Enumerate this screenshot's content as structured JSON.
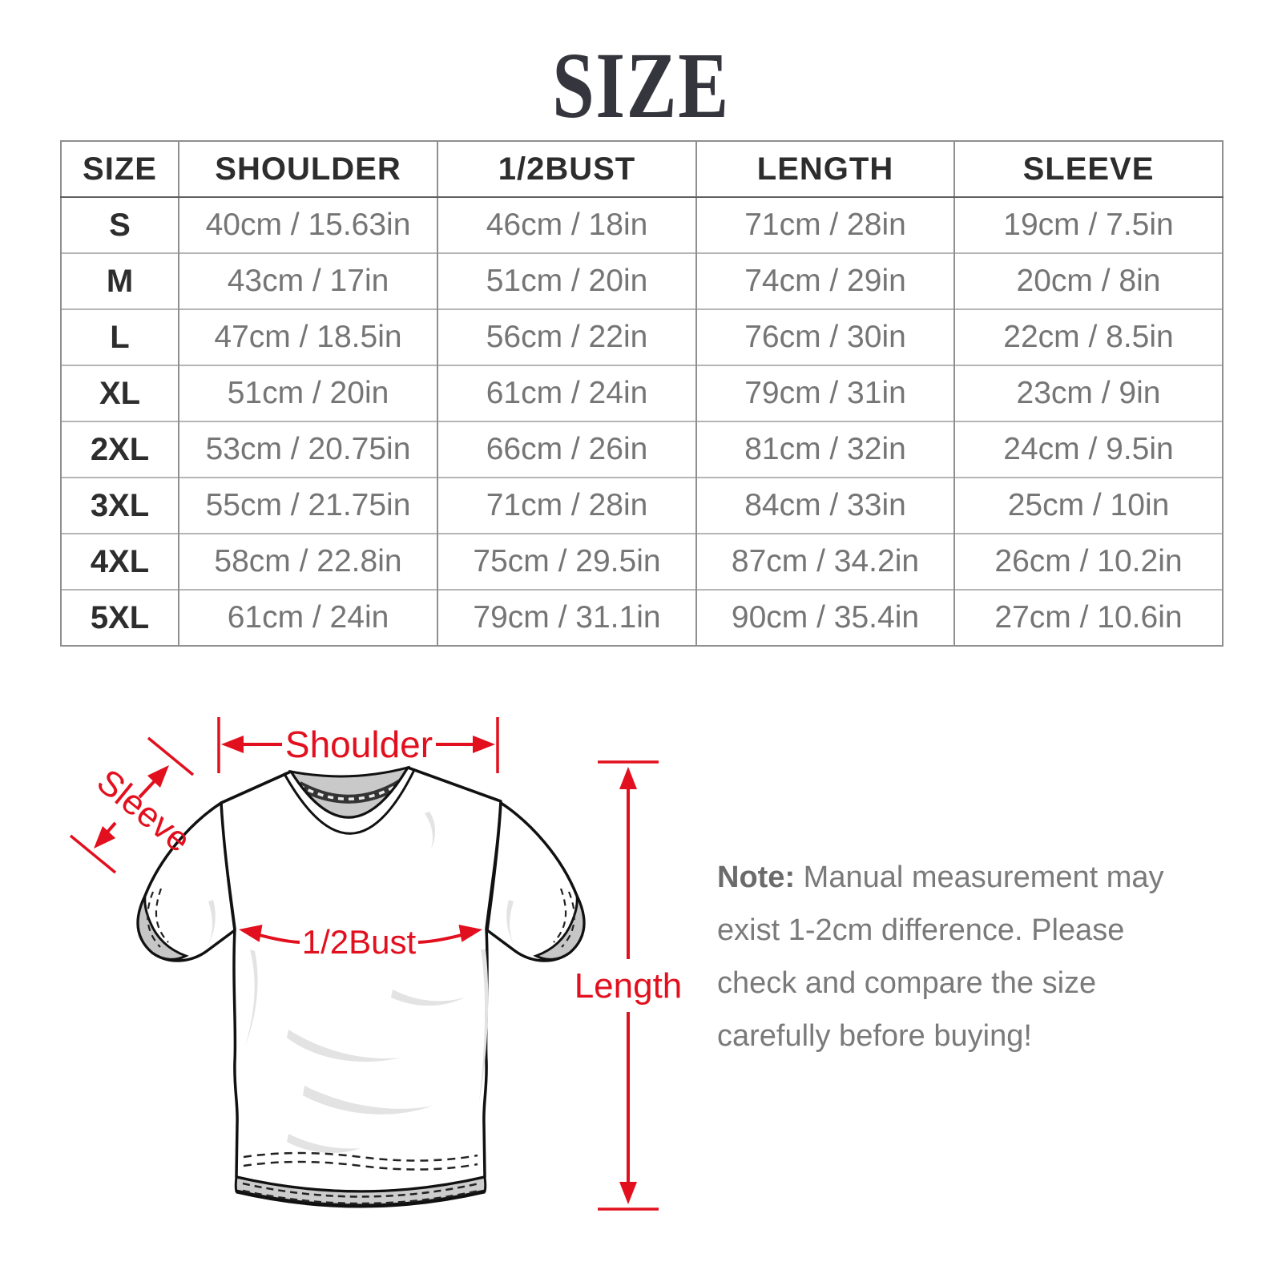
{
  "title": "SIZE",
  "size_table": {
    "columns": [
      "SIZE",
      "SHOULDER",
      "1/2BUST",
      "LENGTH",
      "SLEEVE"
    ],
    "rows": [
      [
        "S",
        "40cm / 15.63in",
        "46cm / 18in",
        "71cm / 28in",
        "19cm / 7.5in"
      ],
      [
        "M",
        "43cm / 17in",
        "51cm / 20in",
        "74cm / 29in",
        "20cm / 8in"
      ],
      [
        "L",
        "47cm / 18.5in",
        "56cm / 22in",
        "76cm / 30in",
        "22cm / 8.5in"
      ],
      [
        "XL",
        "51cm / 20in",
        "61cm / 24in",
        "79cm / 31in",
        "23cm / 9in"
      ],
      [
        "2XL",
        "53cm / 20.75in",
        "66cm / 26in",
        "81cm / 32in",
        "24cm / 9.5in"
      ],
      [
        "3XL",
        "55cm / 21.75in",
        "71cm / 28in",
        "84cm / 33in",
        "25cm / 10in"
      ],
      [
        "4XL",
        "58cm / 22.8in",
        "75cm / 29.5in",
        "87cm / 34.2in",
        "26cm / 10.2in"
      ],
      [
        "5XL",
        "61cm / 24in",
        "79cm / 31.1in",
        "90cm / 35.4in",
        "27cm / 10.6in"
      ]
    ]
  },
  "diagram": {
    "labels": {
      "shoulder": "Shoulder",
      "sleeve": "Sleeve",
      "half_bust": "1/2Bust",
      "length": "Length"
    }
  },
  "note": {
    "label": "Note:",
    "lines": [
      "Manual measurement may",
      "exist 1-2cm difference. Please",
      "check and compare the size",
      "carefully before buying!"
    ]
  },
  "colors": {
    "accent_red": "#e2101e",
    "table_border_gray": "#8f8f8f",
    "header_text": "#2d2d2d",
    "value_text": "#757575",
    "note_text": "#7a7a7a",
    "title_text": "#35353d"
  }
}
